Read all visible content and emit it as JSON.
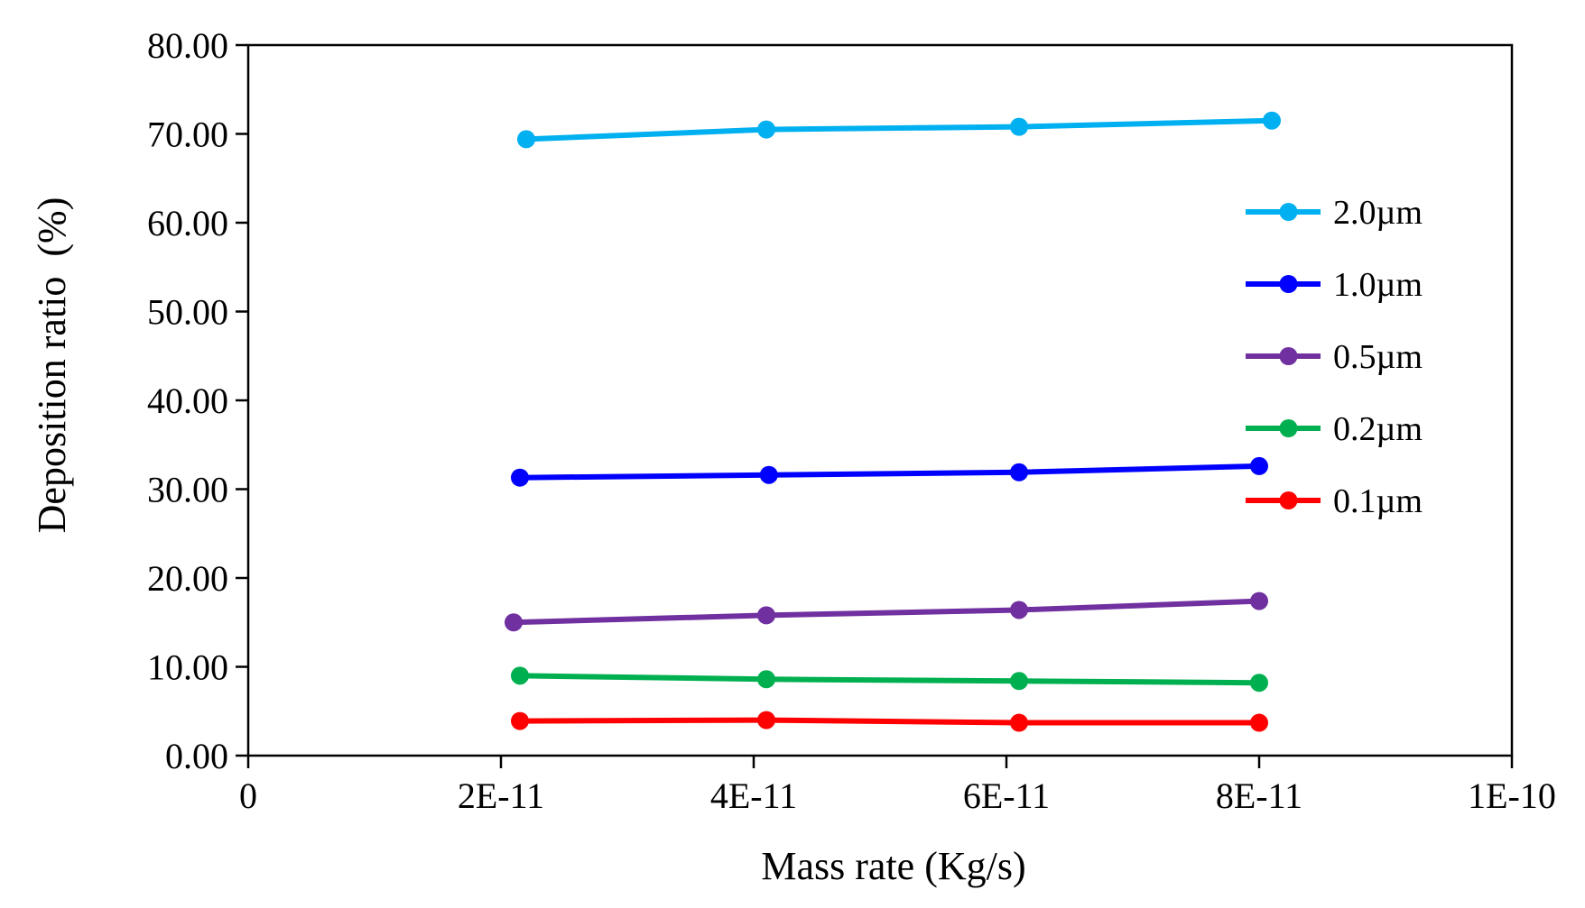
{
  "chart_data": {
    "type": "line",
    "title": "",
    "xlabel": "Mass rate (Kg/s)",
    "ylabel": "Deposition ratio  (%)",
    "xlim": [
      0,
      1e-10
    ],
    "ylim": [
      0,
      80
    ],
    "x_ticks": [
      0,
      2e-11,
      4e-11,
      6e-11,
      8e-11,
      1e-10
    ],
    "x_tick_labels": [
      "0",
      "2E-11",
      "4E-11",
      "6E-11",
      "8E-11",
      "1E-10"
    ],
    "y_ticks": [
      0,
      10,
      20,
      30,
      40,
      50,
      60,
      70,
      80
    ],
    "y_tick_labels": [
      "0.00",
      "10.00",
      "20.00",
      "30.00",
      "40.00",
      "50.00",
      "60.00",
      "70.00",
      "80.00"
    ],
    "grid": false,
    "legend_position": "right",
    "series": [
      {
        "name": "2.0µm",
        "color": "#00B0F0",
        "x": [
          2.2e-11,
          4.1e-11,
          6.1e-11,
          8.1e-11
        ],
        "values": [
          69.4,
          70.5,
          70.8,
          71.5
        ]
      },
      {
        "name": "1.0µm",
        "color": "#0000FF",
        "x": [
          2.15e-11,
          4.12e-11,
          6.1e-11,
          8e-11
        ],
        "values": [
          31.3,
          31.6,
          31.9,
          32.6
        ]
      },
      {
        "name": "0.5µm",
        "color": "#7030A0",
        "x": [
          2.1e-11,
          4.1e-11,
          6.1e-11,
          8e-11
        ],
        "values": [
          15.0,
          15.8,
          16.4,
          17.4
        ]
      },
      {
        "name": "0.2µm",
        "color": "#00B050",
        "x": [
          2.15e-11,
          4.1e-11,
          6.1e-11,
          8e-11
        ],
        "values": [
          9.0,
          8.6,
          8.4,
          8.2
        ]
      },
      {
        "name": "0.1µm",
        "color": "#FF0000",
        "x": [
          2.15e-11,
          4.1e-11,
          6.1e-11,
          8e-11
        ],
        "values": [
          3.9,
          4.0,
          3.7,
          3.7
        ]
      }
    ]
  }
}
